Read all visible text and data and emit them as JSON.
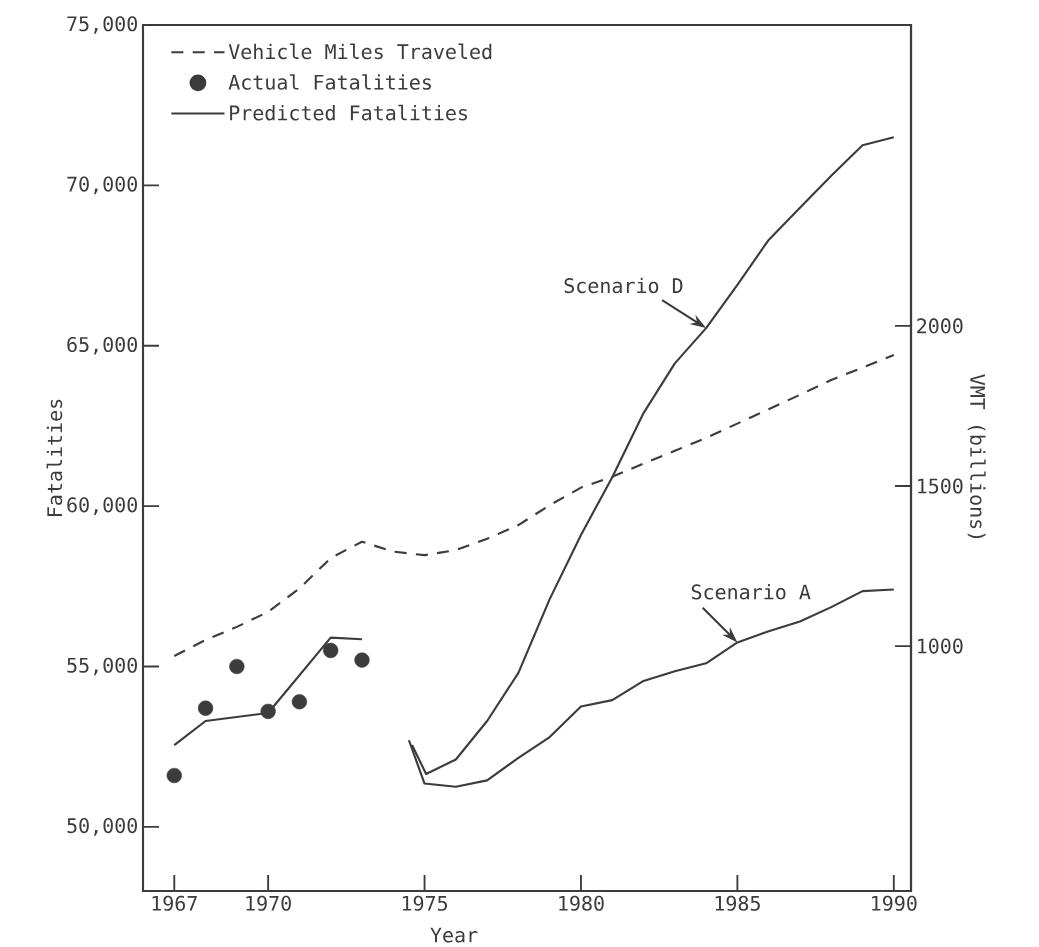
{
  "chart_data": {
    "type": "line",
    "xlabel": "Year",
    "ylabel": "Fatalities",
    "y2label": "VMT (billions)",
    "xlim": [
      1966,
      1990.55
    ],
    "xticks": [
      1967,
      1970,
      1975,
      1980,
      1985,
      1990
    ],
    "ylim": [
      48000,
      75000
    ],
    "yticks": [
      {
        "value": 50000,
        "label": "50,000"
      },
      {
        "value": 55000,
        "label": "55,000"
      },
      {
        "value": 60000,
        "label": "60,000"
      },
      {
        "value": 65000,
        "label": "65,000"
      },
      {
        "value": 70000,
        "label": "70,000"
      },
      {
        "value": 75000,
        "label": "75,000"
      }
    ],
    "y2lim": [
      235,
      2940
    ],
    "y2ticks": [
      1000,
      1500,
      2000
    ],
    "legend": "top left",
    "line_style": "solid",
    "series": [
      {
        "name": "Vehicle Miles Traveled",
        "axis": "y2",
        "line_style": "dashed",
        "color": "#3c3c3c",
        "x": [
          1967,
          1968,
          1969,
          1970,
          1971,
          1972,
          1973,
          1974,
          1975,
          1976,
          1977,
          1978,
          1979,
          1980,
          1981,
          1982,
          1983,
          1984,
          1985,
          1986,
          1987,
          1988,
          1989,
          1990
        ],
        "values": [
          969,
          1019,
          1060,
          1107,
          1180,
          1275,
          1326,
          1295,
          1284,
          1300,
          1335,
          1378,
          1440,
          1495,
          1529,
          1570,
          1610,
          1650,
          1695,
          1740,
          1785,
          1831,
          1870,
          1909
        ]
      },
      {
        "name": "Actual Fatalities",
        "type": "scatter",
        "color": "#3c3c3c",
        "x": [
          1967,
          1968,
          1969,
          1970,
          1971,
          1972,
          1973
        ],
        "values": [
          51600,
          53700,
          55000,
          53600,
          53900,
          55500,
          55200
        ]
      },
      {
        "name": "Predicted Fatalities",
        "color": "#3c3c3c",
        "x": [
          1967,
          1968,
          1970,
          1972,
          1973
        ],
        "values": [
          52550,
          53300,
          53550,
          55900,
          55850
        ]
      },
      {
        "color": "#3c3c3c",
        "x": [
          1974.6,
          1975.05,
          1976,
          1977,
          1978,
          1979,
          1980,
          1981,
          1982,
          1983,
          1984,
          1985,
          1986,
          1987,
          1988,
          1989,
          1990
        ],
        "values": [
          52550,
          51650,
          52100,
          53300,
          54800,
          57100,
          59100,
          60900,
          62900,
          64450,
          65550,
          66900,
          68300,
          69300,
          70300,
          71250,
          71500
        ]
      },
      {
        "color": "#3c3c3c",
        "x": [
          1974.5,
          1975,
          1976,
          1977,
          1978,
          1979,
          1980,
          1981,
          1982,
          1983,
          1984,
          1985,
          1986,
          1987,
          1988,
          1989,
          1990
        ],
        "values": [
          52700,
          51350,
          51250,
          51450,
          52150,
          52800,
          53750,
          53950,
          54550,
          54850,
          55100,
          55750,
          56100,
          56400,
          56850,
          57350,
          57400
        ]
      }
    ],
    "annotations": [
      {
        "text": "Scenario D",
        "x": 1984,
        "y": 65550
      },
      {
        "text": "Scenario A",
        "x": 1985,
        "y": 55750
      }
    ]
  }
}
